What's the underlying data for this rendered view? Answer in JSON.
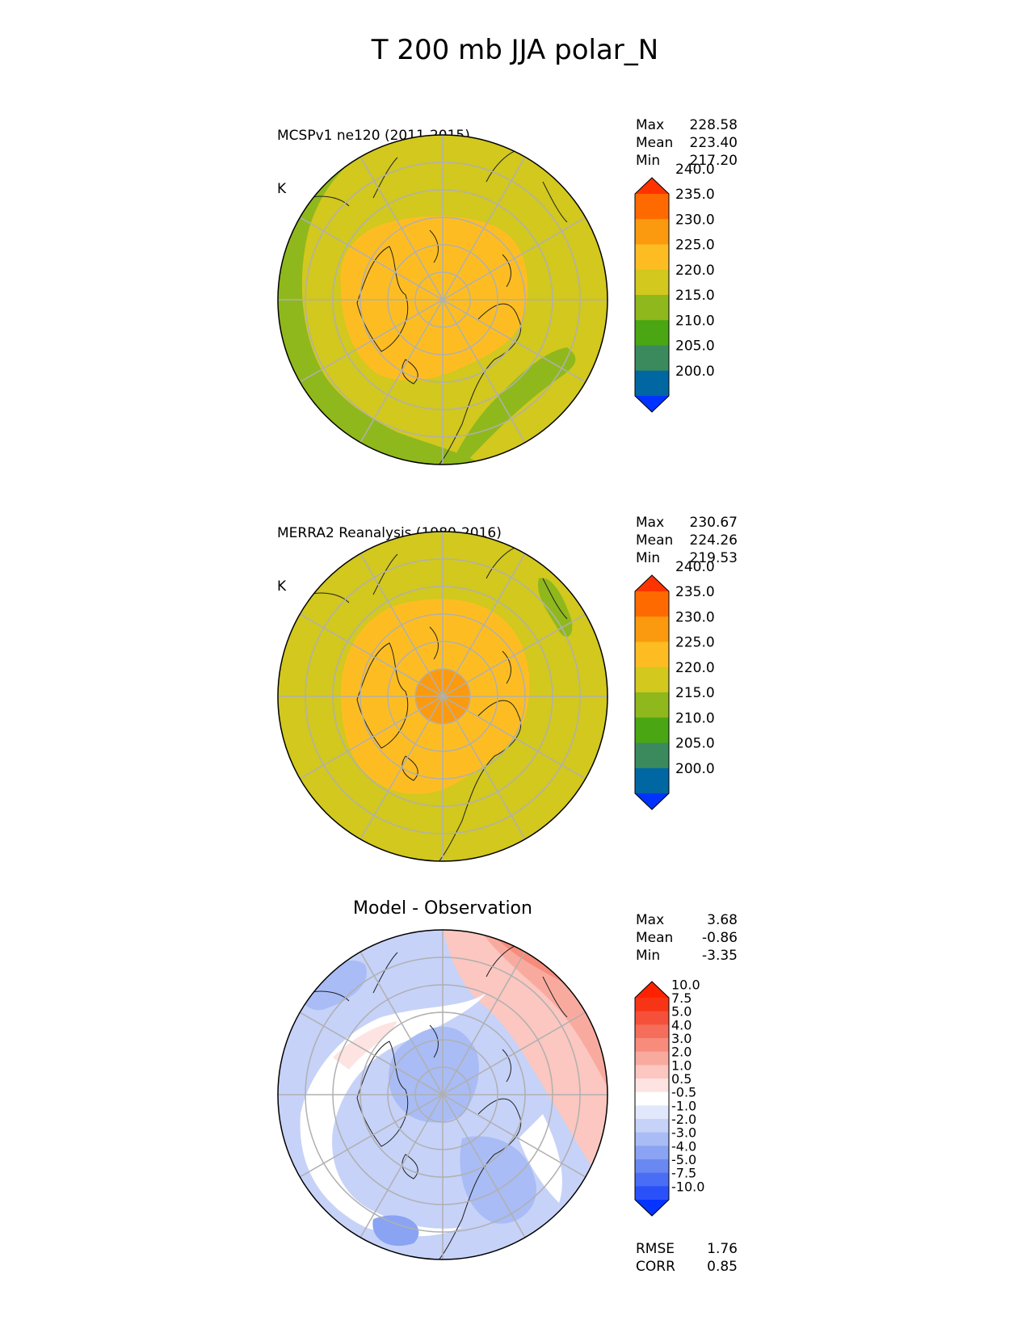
{
  "title": "T 200 mb JJA polar_N",
  "panels": [
    {
      "id": "model",
      "label_line1": "MCSPv1 ne120 (2011-2015)",
      "label_line2": "K",
      "stats": [
        {
          "name": "Max",
          "value": "228.58"
        },
        {
          "name": "Mean",
          "value": "223.40"
        },
        {
          "name": "Min",
          "value": "217.20"
        }
      ]
    },
    {
      "id": "obs",
      "label_line1": "MERRA2 Reanalysis (1980-2016)",
      "label_line2": "K",
      "stats": [
        {
          "name": "Max",
          "value": "230.67"
        },
        {
          "name": "Mean",
          "value": "224.26"
        },
        {
          "name": "Min",
          "value": "219.53"
        }
      ]
    },
    {
      "id": "diff",
      "title": "Model - Observation",
      "stats": [
        {
          "name": "Max",
          "value": "3.68"
        },
        {
          "name": "Mean",
          "value": "-0.86"
        },
        {
          "name": "Min",
          "value": "-3.35"
        }
      ],
      "extra_stats": [
        {
          "name": "RMSE",
          "value": "1.76"
        },
        {
          "name": "CORR",
          "value": "0.85"
        }
      ]
    }
  ],
  "chart_data": [
    {
      "type": "heatmap",
      "projection": "north polar stereographic",
      "panel": "model",
      "colorbar": {
        "levels": [
          "200.0",
          "205.0",
          "210.0",
          "215.0",
          "220.0",
          "225.0",
          "230.0",
          "235.0",
          "240.0"
        ],
        "colors": [
          "#0033ff",
          "#0067a3",
          "#3a8a5e",
          "#4aa612",
          "#8fb81c",
          "#d2c81e",
          "#fdbd22",
          "#fb9a0e",
          "#ff6a00",
          "#ff3300"
        ],
        "extend": "both"
      },
      "field_description_bands_K": [
        {
          "range": [
            225,
            230
          ],
          "region": "central Arctic"
        },
        {
          "range": [
            220,
            225
          ],
          "region": "mid latitudes"
        },
        {
          "range": [
            215,
            220
          ],
          "region": "North Atlantic / North Pacific edges"
        }
      ]
    },
    {
      "type": "heatmap",
      "projection": "north polar stereographic",
      "panel": "obs",
      "colorbar": {
        "levels": [
          "200.0",
          "205.0",
          "210.0",
          "215.0",
          "220.0",
          "225.0",
          "230.0",
          "235.0",
          "240.0"
        ],
        "colors": [
          "#0033ff",
          "#0067a3",
          "#3a8a5e",
          "#4aa612",
          "#8fb81c",
          "#d2c81e",
          "#fdbd22",
          "#fb9a0e",
          "#ff6a00",
          "#ff3300"
        ],
        "extend": "both"
      },
      "field_description_bands_K": [
        {
          "range": [
            230,
            235
          ],
          "region": "near pole"
        },
        {
          "range": [
            225,
            230
          ],
          "region": "central Arctic"
        },
        {
          "range": [
            220,
            225
          ],
          "region": "mid latitudes"
        },
        {
          "range": [
            215,
            220
          ],
          "region": "small North Pacific patch"
        }
      ]
    },
    {
      "type": "heatmap",
      "projection": "north polar stereographic",
      "panel": "diff",
      "colorbar": {
        "levels": [
          "-10.0",
          "-7.5",
          "-5.0",
          "-4.0",
          "-3.0",
          "-2.0",
          "-1.0",
          "-0.5",
          "0.5",
          "1.0",
          "2.0",
          "3.0",
          "4.0",
          "5.0",
          "7.5",
          "10.0"
        ],
        "colors": [
          "#0533ff",
          "#2a50fa",
          "#4a6df5",
          "#6a88f2",
          "#8aa3f3",
          "#a9bcf5",
          "#c6d2f8",
          "#e1e8fb",
          "#ffffff",
          "#fde3e1",
          "#fbc7c0",
          "#f9aa9f",
          "#f78c7c",
          "#f56e5b",
          "#f5503a",
          "#f83417",
          "#ff2200"
        ],
        "extend": "both"
      }
    }
  ]
}
